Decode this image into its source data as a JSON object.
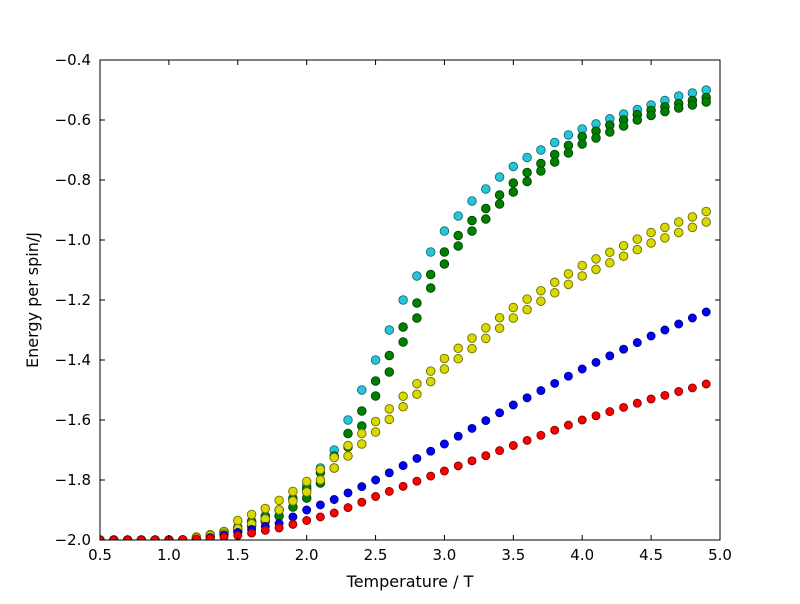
{
  "chart_data": {
    "type": "scatter",
    "title": "",
    "xlabel": "Temperature / T",
    "ylabel": "Energy per spin/J",
    "xlim": [
      0.5,
      5.0
    ],
    "ylim": [
      -2.0,
      -0.4
    ],
    "grid": false,
    "legend": false,
    "x_ticks": [
      0.5,
      1.0,
      1.5,
      2.0,
      2.5,
      3.0,
      3.5,
      4.0,
      4.5,
      5.0
    ],
    "x_tick_labels": [
      "0.5",
      "1.0",
      "1.5",
      "2.0",
      "2.5",
      "3.0",
      "3.5",
      "4.0",
      "4.5",
      "5.0"
    ],
    "y_ticks": [
      -2.0,
      -1.8,
      -1.6,
      -1.4,
      -1.2,
      -1.0,
      -0.8,
      -0.6,
      -0.4
    ],
    "y_tick_labels": [
      "−2.0",
      "−1.8",
      "−1.6",
      "−1.4",
      "−1.2",
      "−1.0",
      "−0.8",
      "−0.6",
      "−0.4"
    ],
    "x": [
      0.5,
      0.6,
      0.7,
      0.8,
      0.9,
      1.0,
      1.1,
      1.2,
      1.3,
      1.4,
      1.5,
      1.6,
      1.7,
      1.8,
      1.9,
      2.0,
      2.1,
      2.2,
      2.3,
      2.4,
      2.5,
      2.6,
      2.7,
      2.8,
      2.9,
      3.0,
      3.1,
      3.2,
      3.3,
      3.4,
      3.5,
      3.6,
      3.7,
      3.8,
      3.9,
      4.0,
      4.1,
      4.2,
      4.3,
      4.4,
      4.5,
      4.6,
      4.7,
      4.8,
      4.9
    ],
    "series": [
      {
        "name": "cyan-series",
        "color": "#27c5d9",
        "edge_color": "#0f6b75",
        "marker_radius": 4.3,
        "values": [
          -2.0,
          -2.0,
          -2.0,
          -2.0,
          -2.0,
          -2.0,
          -2.0,
          -1.995,
          -1.985,
          -1.973,
          -1.96,
          -1.94,
          -1.92,
          -1.9,
          -1.86,
          -1.82,
          -1.76,
          -1.7,
          -1.6,
          -1.5,
          -1.4,
          -1.3,
          -1.2,
          -1.12,
          -1.04,
          -0.97,
          -0.92,
          -0.87,
          -0.83,
          -0.79,
          -0.755,
          -0.725,
          -0.7,
          -0.675,
          -0.65,
          -0.63,
          -0.613,
          -0.596,
          -0.58,
          -0.565,
          -0.55,
          -0.535,
          -0.52,
          -0.51,
          -0.5
        ]
      },
      {
        "name": "green-series-run2",
        "color": "#008000",
        "edge_color": "#004000",
        "marker_radius": 4.3,
        "values": [
          -2.0,
          -2.0,
          -2.0,
          -2.0,
          -2.0,
          -2.0,
          -2.0,
          -2.0,
          -1.985,
          -1.972,
          -1.958,
          -1.938,
          -1.92,
          -1.9,
          -1.865,
          -1.83,
          -1.775,
          -1.72,
          -1.645,
          -1.57,
          -1.47,
          -1.385,
          -1.29,
          -1.21,
          -1.115,
          -1.04,
          -0.985,
          -0.935,
          -0.895,
          -0.85,
          -0.81,
          -0.775,
          -0.745,
          -0.715,
          -0.685,
          -0.655,
          -0.637,
          -0.617,
          -0.6,
          -0.582,
          -0.568,
          -0.556,
          -0.545,
          -0.535,
          -0.525
        ]
      },
      {
        "name": "green-series-run1",
        "color": "#008000",
        "edge_color": "#004000",
        "marker_radius": 4.3,
        "values": [
          -2.0,
          -2.0,
          -2.0,
          -2.0,
          -2.0,
          -2.0,
          -2.0,
          -2.0,
          -1.99,
          -1.98,
          -1.97,
          -1.953,
          -1.937,
          -1.92,
          -1.89,
          -1.86,
          -1.81,
          -1.76,
          -1.69,
          -1.62,
          -1.52,
          -1.44,
          -1.34,
          -1.26,
          -1.16,
          -1.08,
          -1.02,
          -0.97,
          -0.93,
          -0.88,
          -0.84,
          -0.805,
          -0.77,
          -0.74,
          -0.71,
          -0.68,
          -0.66,
          -0.64,
          -0.62,
          -0.6,
          -0.585,
          -0.572,
          -0.56,
          -0.55,
          -0.54
        ]
      },
      {
        "name": "yellow-series-run2",
        "color": "#d9d900",
        "edge_color": "#6b6b00",
        "marker_radius": 4.3,
        "values": [
          -2.0,
          -2.0,
          -2.0,
          -2.0,
          -2.0,
          -2.0,
          -2.0,
          -1.99,
          -1.982,
          -1.972,
          -1.935,
          -1.915,
          -1.895,
          -1.868,
          -1.838,
          -1.805,
          -1.765,
          -1.725,
          -1.685,
          -1.645,
          -1.605,
          -1.563,
          -1.521,
          -1.479,
          -1.437,
          -1.395,
          -1.361,
          -1.327,
          -1.293,
          -1.259,
          -1.225,
          -1.197,
          -1.169,
          -1.141,
          -1.113,
          -1.085,
          -1.063,
          -1.041,
          -1.019,
          -0.997,
          -0.975,
          -0.958,
          -0.94,
          -0.923,
          -0.905
        ]
      },
      {
        "name": "yellow-series-run1",
        "color": "#d9d900",
        "edge_color": "#6b6b00",
        "marker_radius": 4.3,
        "values": [
          -2.0,
          -2.0,
          -2.0,
          -2.0,
          -2.0,
          -2.0,
          -2.0,
          -1.993,
          -1.985,
          -1.978,
          -1.962,
          -1.946,
          -1.93,
          -1.9,
          -1.87,
          -1.84,
          -1.8,
          -1.76,
          -1.72,
          -1.68,
          -1.64,
          -1.598,
          -1.556,
          -1.514,
          -1.472,
          -1.43,
          -1.396,
          -1.362,
          -1.328,
          -1.294,
          -1.26,
          -1.232,
          -1.204,
          -1.176,
          -1.148,
          -1.12,
          -1.098,
          -1.076,
          -1.054,
          -1.032,
          -1.01,
          -0.993,
          -0.975,
          -0.958,
          -0.94
        ]
      },
      {
        "name": "blue-series",
        "color": "#0000ff",
        "edge_color": "#00007f",
        "marker_radius": 4.0,
        "values": [
          -2.0,
          -2.0,
          -2.0,
          -2.0,
          -2.0,
          -2.0,
          -2.0,
          -2.0,
          -1.992,
          -1.983,
          -1.975,
          -1.965,
          -1.955,
          -1.945,
          -1.923,
          -1.9,
          -1.883,
          -1.865,
          -1.843,
          -1.822,
          -1.8,
          -1.776,
          -1.752,
          -1.728,
          -1.704,
          -1.68,
          -1.654,
          -1.628,
          -1.602,
          -1.576,
          -1.55,
          -1.526,
          -1.502,
          -1.478,
          -1.454,
          -1.43,
          -1.408,
          -1.386,
          -1.364,
          -1.342,
          -1.32,
          -1.3,
          -1.28,
          -1.26,
          -1.24
        ]
      },
      {
        "name": "red-series",
        "color": "#ff0000",
        "edge_color": "#7f0000",
        "marker_radius": 4.0,
        "values": [
          -2.0,
          -2.0,
          -2.0,
          -2.0,
          -2.0,
          -2.0,
          -1.998,
          -1.997,
          -1.995,
          -1.99,
          -1.985,
          -1.977,
          -1.968,
          -1.96,
          -1.948,
          -1.935,
          -1.923,
          -1.91,
          -1.892,
          -1.874,
          -1.855,
          -1.838,
          -1.821,
          -1.804,
          -1.787,
          -1.77,
          -1.753,
          -1.736,
          -1.719,
          -1.702,
          -1.685,
          -1.668,
          -1.651,
          -1.634,
          -1.617,
          -1.6,
          -1.586,
          -1.572,
          -1.558,
          -1.544,
          -1.53,
          -1.518,
          -1.505,
          -1.493,
          -1.48
        ]
      }
    ]
  }
}
